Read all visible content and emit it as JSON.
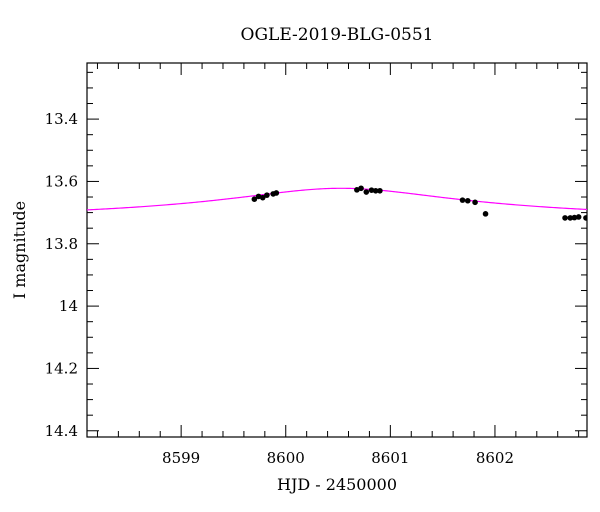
{
  "chart_data": {
    "type": "scatter",
    "title": "OGLE-2019-BLG-0551",
    "xlabel": "HJD - 2450000",
    "ylabel": "I magnitude",
    "xlim": [
      8598.1,
      8602.88
    ],
    "ylim": [
      13.22,
      14.42
    ],
    "y_inverted": true,
    "x_ticks": [
      8599,
      8600,
      8601,
      8602
    ],
    "x_tick_labels": [
      "8599",
      "8600",
      "8601",
      "8602"
    ],
    "y_ticks": [
      13.4,
      13.6,
      13.8,
      14,
      14.2,
      14.4
    ],
    "y_tick_labels": [
      "13.4",
      "13.6",
      "13.8",
      "14",
      "14.2",
      "14.4"
    ],
    "grid": false,
    "series": [
      {
        "kind": "points",
        "color": "#000000",
        "points": [
          [
            8599.7,
            13.657
          ],
          [
            8599.74,
            13.648
          ],
          [
            8599.78,
            13.652
          ],
          [
            8599.82,
            13.644
          ],
          [
            8599.88,
            13.64
          ],
          [
            8599.91,
            13.637
          ],
          [
            8600.68,
            13.627
          ],
          [
            8600.72,
            13.622
          ],
          [
            8600.77,
            13.634
          ],
          [
            8600.82,
            13.628
          ],
          [
            8600.86,
            13.63
          ],
          [
            8600.9,
            13.63
          ],
          [
            8601.69,
            13.66
          ],
          [
            8601.74,
            13.662
          ],
          [
            8601.81,
            13.667
          ],
          [
            8601.91,
            13.704
          ],
          [
            8602.67,
            13.717
          ],
          [
            8602.72,
            13.717
          ],
          [
            8602.76,
            13.716
          ],
          [
            8602.8,
            13.714
          ],
          [
            8602.87,
            13.717
          ]
        ]
      },
      {
        "kind": "model",
        "color": "#ff00ff",
        "model": {
          "peak_x": 8600.53,
          "peak_y": 13.622,
          "amplitude": 0.118,
          "width": 1.1
        }
      }
    ]
  }
}
